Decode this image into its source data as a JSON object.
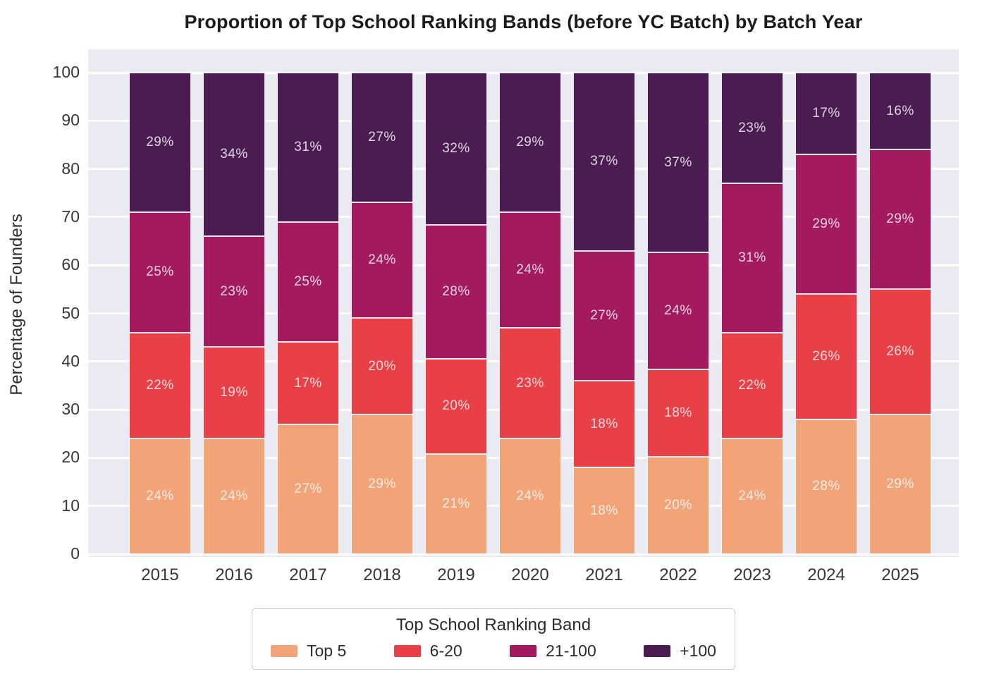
{
  "chart_data": {
    "type": "bar",
    "stacked": true,
    "title": "Proportion of Top School Ranking Bands (before YC Batch) by Batch Year",
    "xlabel": "",
    "ylabel": "Percentage of Founders",
    "ylim": [
      0,
      100
    ],
    "yticks": [
      0,
      10,
      20,
      30,
      40,
      50,
      60,
      70,
      80,
      90,
      100
    ],
    "categories": [
      "2015",
      "2016",
      "2017",
      "2018",
      "2019",
      "2020",
      "2021",
      "2022",
      "2023",
      "2024",
      "2025"
    ],
    "value_suffix": "%",
    "grid": "on",
    "legend_position": "bottom-center",
    "legend_title": "Top School Ranking Band",
    "series": [
      {
        "name": "Top 5",
        "color": "#F2A377",
        "values": [
          24,
          24,
          27,
          29,
          21,
          24,
          18,
          20,
          24,
          28,
          29
        ]
      },
      {
        "name": "6-20",
        "color": "#E93F46",
        "values": [
          22,
          19,
          17,
          20,
          20,
          23,
          18,
          18,
          22,
          26,
          26
        ]
      },
      {
        "name": "21-100",
        "color": "#A31A5E",
        "values": [
          25,
          23,
          25,
          24,
          28,
          24,
          27,
          24,
          31,
          29,
          29
        ]
      },
      {
        "name": "+100",
        "color": "#4A1C51",
        "values": [
          29,
          34,
          31,
          27,
          32,
          29,
          37,
          37,
          23,
          17,
          16
        ]
      }
    ],
    "colors": {
      "plot_background": "#EAEAF2",
      "gridline": "#FFFFFF",
      "bar_label_text": "rgba(255,255,255,0.82)"
    }
  }
}
